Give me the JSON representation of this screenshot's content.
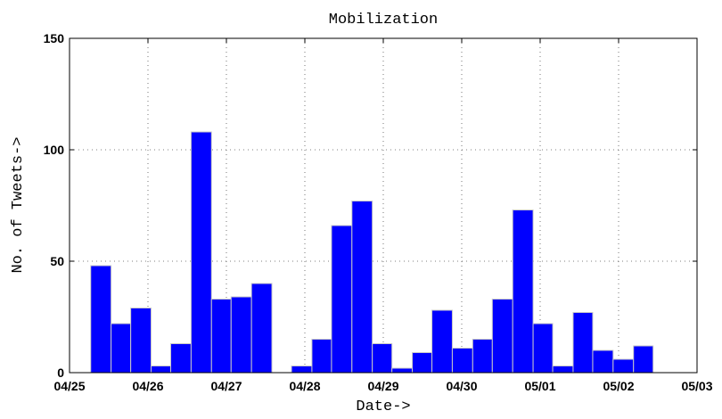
{
  "chart_data": {
    "type": "histogram",
    "title": "Mobilization",
    "x_label": "Date->",
    "y_label": "No. of Tweets->",
    "bins": [
      0.27,
      0.53,
      0.78,
      1.04,
      1.29,
      1.55,
      1.81,
      2.06,
      2.32,
      2.58,
      2.83,
      3.09,
      3.34,
      3.6,
      3.86,
      4.11,
      4.37,
      4.62,
      4.88,
      5.14,
      5.39,
      5.65,
      5.91,
      6.16,
      6.42,
      6.67,
      6.93,
      7.19,
      7.44
    ],
    "values": [
      48,
      22,
      29,
      3,
      13,
      108,
      33,
      34,
      40,
      0,
      3,
      15,
      66,
      77,
      13,
      2,
      9,
      28,
      11,
      15,
      33,
      73,
      22,
      3,
      27,
      10,
      6,
      12
    ],
    "color": "#0000ff",
    "edge_color": "#c8c8c8",
    "xlim": [
      0,
      8
    ],
    "xticks": [
      {
        "value": 0,
        "label": "04/25"
      },
      {
        "value": 1,
        "label": "04/26"
      },
      {
        "value": 2,
        "label": "04/27"
      },
      {
        "value": 3,
        "label": "04/28"
      },
      {
        "value": 4,
        "label": "04/29"
      },
      {
        "value": 5,
        "label": "04/30"
      },
      {
        "value": 6,
        "label": "05/01"
      },
      {
        "value": 7,
        "label": "05/02"
      },
      {
        "value": 8,
        "label": "05/03"
      }
    ],
    "ylim": [
      0,
      150
    ],
    "yticks": [
      0,
      50,
      100,
      150
    ],
    "grid": true
  }
}
